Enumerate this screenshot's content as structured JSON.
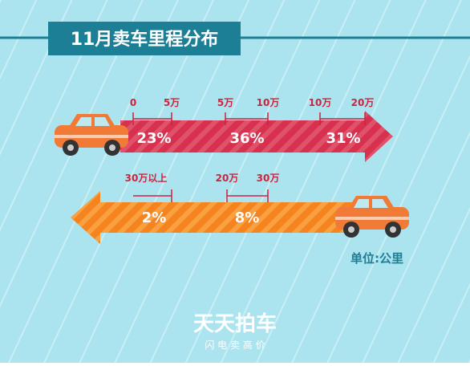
{
  "header": {
    "title": "11月卖车里程分布"
  },
  "top_arrow": {
    "segments": [
      {
        "from": "0",
        "to": "5万",
        "share": "23%"
      },
      {
        "from": "5万",
        "to": "10万",
        "share": "36%"
      },
      {
        "from": "10万",
        "to": "20万",
        "share": "31%"
      }
    ]
  },
  "bottom_arrow": {
    "segments": [
      {
        "from": "30万以上",
        "share": "2%"
      },
      {
        "from": "20万",
        "to": "30万",
        "share": "8%"
      }
    ]
  },
  "unit": "单位:公里",
  "logo": {
    "name": "天天拍车",
    "slogan": "闪 电 卖 高 价"
  }
}
